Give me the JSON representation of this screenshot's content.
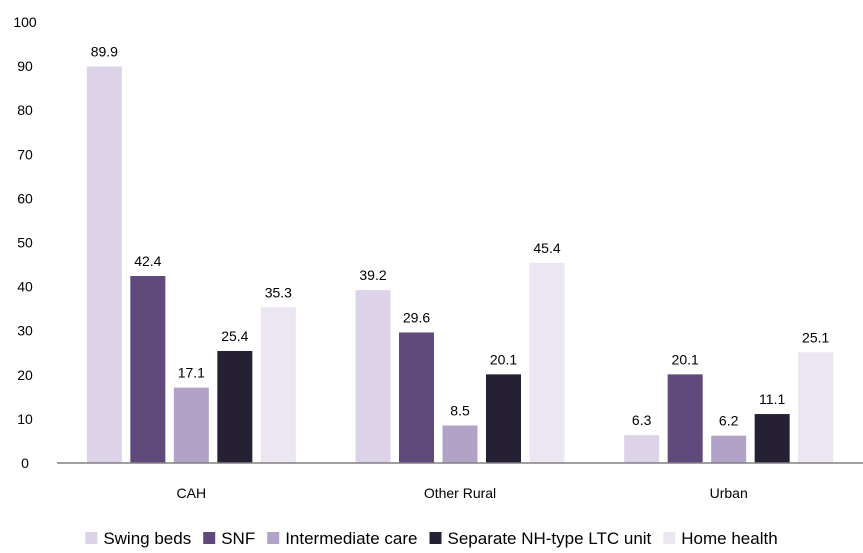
{
  "chart_data": {
    "type": "bar",
    "categories": [
      "CAH",
      "Other Rural",
      "Urban"
    ],
    "series": [
      {
        "name": "Swing beds",
        "values": [
          89.9,
          39.2,
          6.3
        ],
        "color": "#dcd3e8"
      },
      {
        "name": "SNF",
        "values": [
          42.4,
          29.6,
          20.1
        ],
        "color": "#604a7b"
      },
      {
        "name": "Intermediate care",
        "values": [
          17.1,
          8.5,
          6.2
        ],
        "color": "#b3a2c7"
      },
      {
        "name": "Separate NH-type LTC unit",
        "values": [
          25.4,
          20.1,
          11.1
        ],
        "color": "#262035"
      },
      {
        "name": "Home health",
        "values": [
          35.3,
          45.4,
          25.1
        ],
        "color": "#ebe6f1"
      }
    ],
    "title": "",
    "xlabel": "",
    "ylabel": "",
    "ylim": [
      0,
      100
    ],
    "yticks": [
      0,
      10,
      20,
      30,
      40,
      50,
      60,
      70,
      80,
      90,
      100
    ],
    "grid": false,
    "legend_position": "bottom"
  }
}
